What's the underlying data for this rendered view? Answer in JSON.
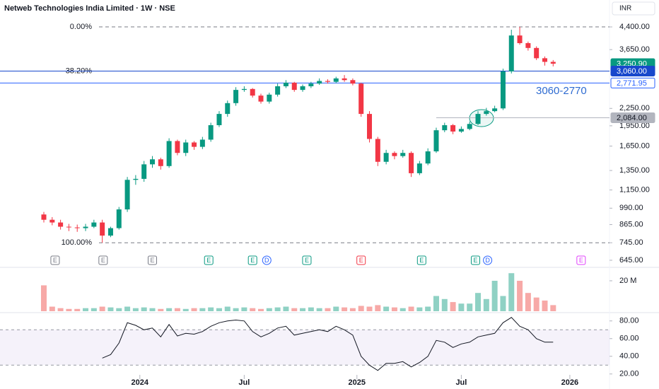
{
  "chart_data": {
    "type": "candlestick",
    "title": "Netweb Technologies India Limited · 1W · NSE",
    "currency": "INR",
    "log_scale": true,
    "up_color": "#089981",
    "down_color": "#f23645",
    "x": [
      0,
      2,
      4,
      6,
      8,
      10,
      12,
      14,
      16,
      18,
      20,
      22,
      24,
      26,
      28,
      30,
      32,
      34,
      36,
      38,
      40,
      42,
      44,
      46,
      48,
      50,
      52,
      54,
      56,
      58,
      60,
      62,
      64,
      66,
      68,
      70,
      72,
      74,
      76,
      78,
      80,
      82,
      84,
      86,
      88,
      90,
      92,
      94,
      96,
      98,
      100,
      102,
      104,
      106,
      108,
      110,
      112,
      114,
      116,
      118,
      120,
      122
    ],
    "open": [
      940,
      900,
      880,
      850,
      845,
      840,
      850,
      880,
      790,
      840,
      980,
      1250,
      1260,
      1420,
      1480,
      1400,
      1720,
      1560,
      1700,
      1640,
      1740,
      1960,
      2150,
      2350,
      2620,
      2640,
      2500,
      2380,
      2520,
      2700,
      2780,
      2620,
      2700,
      2760,
      2820,
      2800,
      2880,
      2840,
      2760,
      2150,
      1750,
      1450,
      1560,
      1520,
      1560,
      1320,
      1430,
      1580,
      1880,
      1960,
      1860,
      1900,
      1980,
      2150,
      2200,
      2250,
      3050,
      4100,
      3850,
      3700,
      3400,
      3300
    ],
    "high": [
      960,
      920,
      900,
      870,
      865,
      870,
      900,
      900,
      850,
      1000,
      1280,
      1300,
      1460,
      1520,
      1500,
      1760,
      1740,
      1740,
      1720,
      1780,
      2000,
      2200,
      2400,
      2680,
      2700,
      2660,
      2540,
      2560,
      2760,
      2840,
      2800,
      2740,
      2800,
      2880,
      2860,
      2920,
      2960,
      2880,
      2780,
      2200,
      1780,
      1600,
      1580,
      1600,
      1580,
      1460,
      1620,
      1920,
      2000,
      1980,
      1940,
      2020,
      2200,
      2260,
      2300,
      3120,
      4300,
      4400,
      3900,
      3750,
      3450,
      3350
    ],
    "low": [
      880,
      860,
      830,
      820,
      815,
      820,
      840,
      745,
      780,
      830,
      960,
      1200,
      1230,
      1380,
      1360,
      1380,
      1530,
      1520,
      1600,
      1610,
      1710,
      1930,
      2100,
      2300,
      2580,
      2460,
      2340,
      2340,
      2480,
      2660,
      2580,
      2580,
      2660,
      2730,
      2760,
      2770,
      2800,
      2720,
      2100,
      1700,
      1400,
      1420,
      1480,
      1500,
      1280,
      1300,
      1410,
      1560,
      1850,
      1820,
      1840,
      1880,
      1960,
      2120,
      2180,
      2220,
      3000,
      3800,
      3620,
      3350,
      3200,
      3180
    ],
    "close": [
      900,
      880,
      850,
      845,
      840,
      850,
      880,
      790,
      840,
      980,
      1250,
      1260,
      1420,
      1480,
      1400,
      1720,
      1560,
      1700,
      1640,
      1740,
      1960,
      2150,
      2350,
      2620,
      2640,
      2500,
      2380,
      2520,
      2700,
      2780,
      2620,
      2700,
      2760,
      2820,
      2800,
      2880,
      2840,
      2760,
      2150,
      1750,
      1450,
      1560,
      1520,
      1560,
      1320,
      1430,
      1580,
      1880,
      1960,
      1860,
      1900,
      1980,
      2150,
      2200,
      2250,
      3050,
      4100,
      3850,
      3700,
      3400,
      3300,
      3250.9
    ],
    "xlim": [
      -10.5,
      135.5
    ],
    "xticks": [
      {
        "value": 23,
        "label": "2024"
      },
      {
        "value": 48,
        "label": "Jul"
      },
      {
        "value": 75,
        "label": "2025"
      },
      {
        "value": 100,
        "label": "Jul"
      },
      {
        "value": 126,
        "label": "2026"
      }
    ],
    "ylim": [
      630,
      5180
    ],
    "yticks": [
      {
        "value": 4400,
        "label": "4,400.00"
      },
      {
        "value": 3650,
        "label": "3,650.00"
      },
      {
        "value": 2250,
        "label": "2,250.00"
      },
      {
        "value": 1950,
        "label": "1,950.00"
      },
      {
        "value": 1650,
        "label": "1,650.00"
      },
      {
        "value": 1350,
        "label": "1,350.00"
      },
      {
        "value": 1150,
        "label": "1,150.00"
      },
      {
        "value": 990,
        "label": "990.00"
      },
      {
        "value": 865,
        "label": "865.00"
      },
      {
        "value": 745,
        "label": "745.00"
      },
      {
        "value": 645,
        "label": "645.00"
      }
    ],
    "fib_levels": [
      {
        "value": 4400,
        "label": "0.00%"
      },
      {
        "value": 3060,
        "label": "38.20%"
      },
      {
        "value": 745,
        "label": "100.00%"
      }
    ],
    "price_levels": [
      {
        "value": 3250.9,
        "label": "3,250.90",
        "color": "#089981",
        "line": false
      },
      {
        "value": 3060,
        "label": "3,060.00",
        "color": "#1848cc",
        "line": true
      },
      {
        "value": 2771.95,
        "label": "2,771.95",
        "color": "#2962ff",
        "line": true,
        "outline": true
      },
      {
        "value": 2084,
        "label": "2,084.00",
        "color": "#b2b5be",
        "line": true,
        "from_x": 94
      }
    ],
    "annotation": "3060-2770",
    "events": [
      {
        "label": "E",
        "x": 2.7,
        "color": "#787b86"
      },
      {
        "label": "E",
        "x": 14.2,
        "color": "#787b86"
      },
      {
        "label": "E",
        "x": 26,
        "color": "#787b86"
      },
      {
        "label": "E",
        "x": 39.5,
        "color": "#089981"
      },
      {
        "label": "E",
        "x": 50,
        "color": "#089981"
      },
      {
        "label": "D",
        "x": 53.4,
        "color": "#2962ff"
      },
      {
        "label": "E",
        "x": 63,
        "color": "#089981"
      },
      {
        "label": "E",
        "x": 76,
        "color": "#f23645"
      },
      {
        "label": "E",
        "x": 90.5,
        "color": "#089981"
      },
      {
        "label": "E",
        "x": 103.4,
        "color": "#089981"
      },
      {
        "label": "D",
        "x": 106.3,
        "color": "#2962ff"
      },
      {
        "label": "E",
        "x": 128.7,
        "color": "#e040fb"
      }
    ],
    "volume": {
      "values": [
        17,
        3,
        2,
        1.5,
        1.5,
        2,
        2,
        3,
        2.5,
        2,
        3,
        2,
        2.5,
        2,
        1.5,
        2,
        2,
        1.5,
        2,
        2,
        2.5,
        2,
        3,
        2,
        2.5,
        2,
        1.5,
        2,
        2.5,
        3,
        2,
        2,
        2.5,
        2,
        2,
        3,
        2.5,
        2,
        3.5,
        3,
        4,
        3,
        2.5,
        2,
        3,
        2.5,
        3,
        10,
        8,
        6,
        5,
        5,
        12,
        8,
        20,
        10,
        25,
        20,
        12,
        9,
        7,
        4
      ],
      "ylim": [
        0,
        26.5
      ],
      "yticks": [
        {
          "value": 20,
          "label": "20 M"
        }
      ],
      "up_color": "#8fd1c4",
      "down_color": "#f7a9a7"
    },
    "rsi": {
      "values": [
        null,
        null,
        null,
        null,
        null,
        null,
        null,
        38,
        42,
        55,
        78,
        75,
        70,
        72,
        62,
        76,
        63,
        66,
        65,
        68,
        74,
        78,
        80,
        81,
        80,
        68,
        62,
        66,
        72,
        74,
        64,
        66,
        68,
        70,
        68,
        74,
        70,
        64,
        40,
        30,
        24,
        32,
        32,
        34,
        28,
        33,
        40,
        58,
        56,
        50,
        54,
        56,
        62,
        64,
        66,
        78,
        84,
        74,
        70,
        60,
        56,
        56
      ],
      "ylim": [
        15,
        87
      ],
      "yticks": [
        {
          "value": 80,
          "label": "80.00"
        },
        {
          "value": 60,
          "label": "60.00"
        },
        {
          "value": 40,
          "label": "40.00"
        },
        {
          "value": 20,
          "label": "20.00"
        }
      ],
      "band": [
        30,
        70
      ],
      "color": "#131722"
    }
  }
}
